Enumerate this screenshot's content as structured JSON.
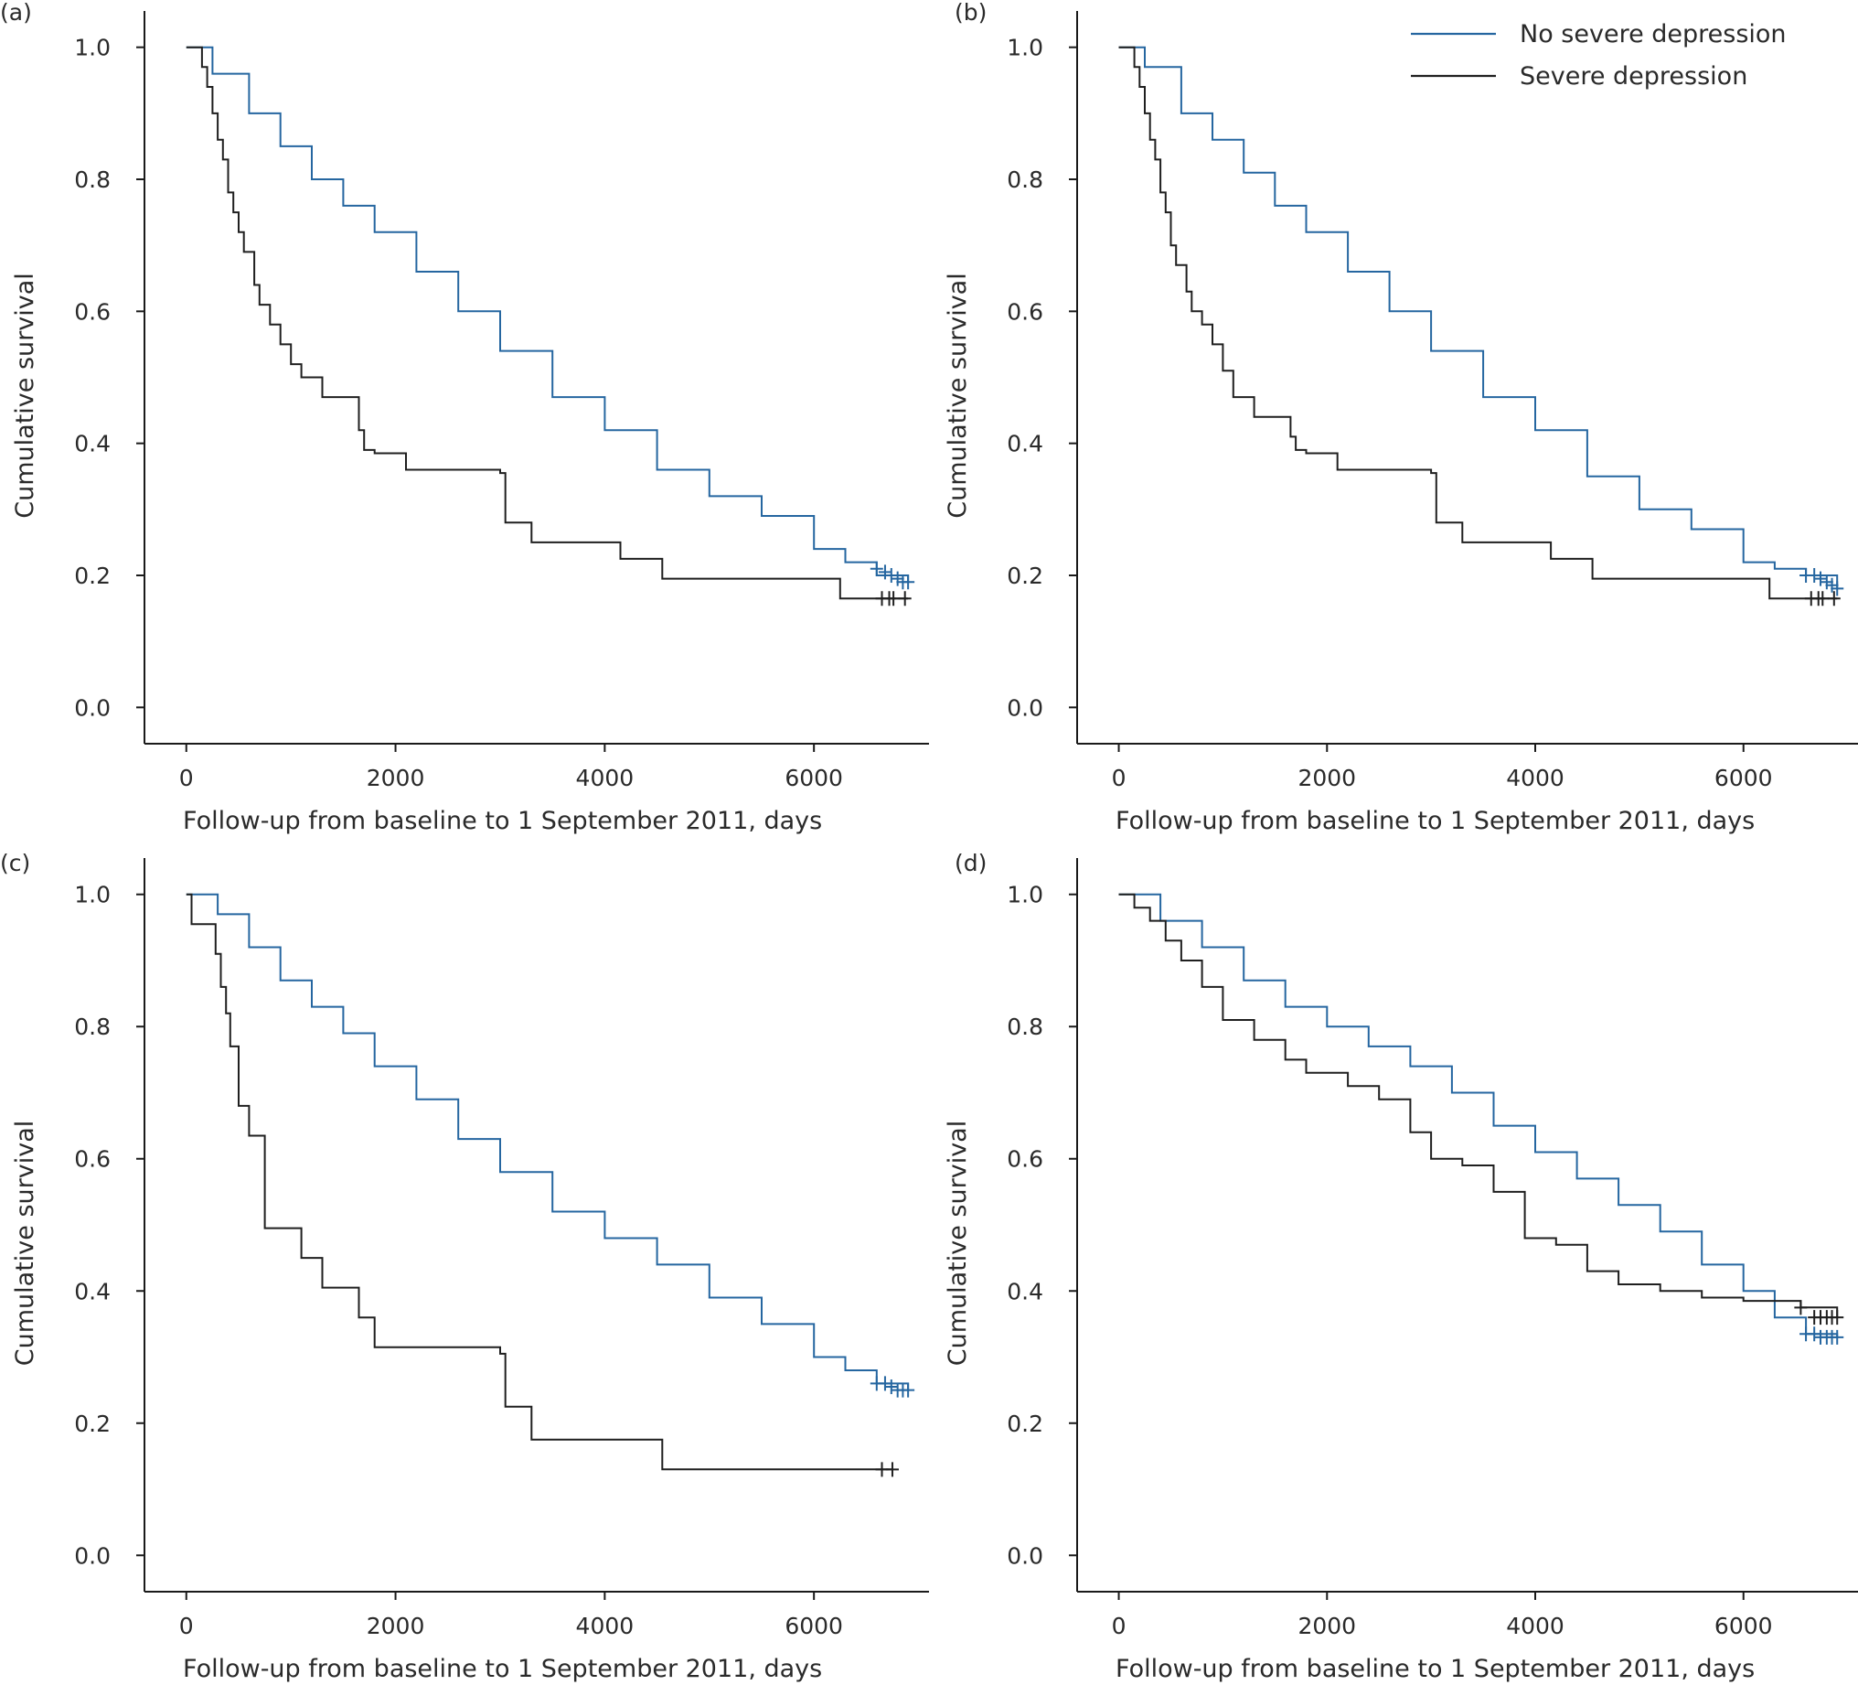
{
  "colors": {
    "no_severe": "#2566a0",
    "severe": "#1f1f1f",
    "axis": "#1a1a1a"
  },
  "legend": [
    {
      "label": "No severe depression",
      "color": "#2566a0"
    },
    {
      "label": "Severe depression",
      "color": "#1f1f1f"
    }
  ],
  "chart_data": [
    {
      "type": "line",
      "panel": "(a)",
      "xlabel": "Follow-up from baseline to 1 September 2011, days",
      "ylabel": "Cumulative survival",
      "xlim": [
        -400,
        7100
      ],
      "ylim": [
        -0.055,
        1.055
      ],
      "xticks": [
        0,
        2000,
        4000,
        6000
      ],
      "yticks": [
        0.0,
        0.2,
        0.4,
        0.6,
        0.8,
        1.0
      ],
      "xtick_labels": [
        "0",
        "2000",
        "4000",
        "6000"
      ],
      "ytick_labels": [
        "0.0",
        "0.2",
        "0.4",
        "0.6",
        "0.8",
        "1.0"
      ],
      "series": [
        {
          "name": "No severe depression",
          "x": [
            0,
            250,
            600,
            900,
            1200,
            1500,
            1800,
            2200,
            2600,
            3000,
            3500,
            4000,
            4500,
            5000,
            5500,
            6000,
            6300,
            6600,
            6900
          ],
          "y": [
            1.0,
            0.96,
            0.9,
            0.85,
            0.8,
            0.76,
            0.72,
            0.66,
            0.6,
            0.54,
            0.47,
            0.42,
            0.36,
            0.32,
            0.29,
            0.24,
            0.22,
            0.2,
            0.19
          ],
          "censored_x": [
            6600,
            6680,
            6740,
            6800,
            6850,
            6900
          ],
          "censored_y": [
            0.21,
            0.205,
            0.2,
            0.195,
            0.19,
            0.19
          ]
        },
        {
          "name": "Severe depression",
          "x": [
            0,
            150,
            200,
            250,
            300,
            350,
            400,
            450,
            500,
            550,
            650,
            700,
            800,
            900,
            1000,
            1100,
            1300,
            1650,
            1700,
            1800,
            2100,
            3000,
            3050,
            3300,
            4150,
            4550,
            6250,
            6900
          ],
          "y": [
            1.0,
            0.97,
            0.94,
            0.9,
            0.86,
            0.83,
            0.78,
            0.75,
            0.72,
            0.69,
            0.64,
            0.61,
            0.58,
            0.55,
            0.52,
            0.5,
            0.47,
            0.42,
            0.39,
            0.385,
            0.36,
            0.355,
            0.28,
            0.25,
            0.225,
            0.195,
            0.165,
            0.165
          ],
          "censored_x": [
            6650,
            6720,
            6760,
            6870
          ],
          "censored_y": [
            0.165,
            0.165,
            0.165,
            0.165
          ]
        }
      ]
    },
    {
      "type": "line",
      "panel": "(b)",
      "xlabel": "Follow-up from baseline to 1 September 2011, days",
      "ylabel": "Cumulative survival",
      "xlim": [
        -400,
        7100
      ],
      "ylim": [
        -0.055,
        1.055
      ],
      "xticks": [
        0,
        2000,
        4000,
        6000
      ],
      "yticks": [
        0.0,
        0.2,
        0.4,
        0.6,
        0.8,
        1.0
      ],
      "xtick_labels": [
        "0",
        "2000",
        "4000",
        "6000"
      ],
      "ytick_labels": [
        "0.0",
        "0.2",
        "0.4",
        "0.6",
        "0.8",
        "1.0"
      ],
      "series": [
        {
          "name": "No severe depression",
          "x": [
            0,
            250,
            600,
            900,
            1200,
            1500,
            1800,
            2200,
            2600,
            3000,
            3500,
            4000,
            4500,
            5000,
            5500,
            6000,
            6300,
            6600,
            6900
          ],
          "y": [
            1.0,
            0.97,
            0.9,
            0.86,
            0.81,
            0.76,
            0.72,
            0.66,
            0.6,
            0.54,
            0.47,
            0.42,
            0.35,
            0.3,
            0.27,
            0.22,
            0.21,
            0.2,
            0.18
          ],
          "censored_x": [
            6600,
            6680,
            6740,
            6800,
            6850,
            6900
          ],
          "censored_y": [
            0.2,
            0.2,
            0.195,
            0.19,
            0.185,
            0.18
          ]
        },
        {
          "name": "Severe depression",
          "x": [
            0,
            150,
            200,
            250,
            300,
            350,
            400,
            450,
            500,
            550,
            650,
            700,
            800,
            900,
            1000,
            1100,
            1300,
            1650,
            1700,
            1800,
            2100,
            3000,
            3050,
            3300,
            4150,
            4550,
            6250,
            6900
          ],
          "y": [
            1.0,
            0.97,
            0.94,
            0.9,
            0.86,
            0.83,
            0.78,
            0.75,
            0.7,
            0.67,
            0.63,
            0.6,
            0.58,
            0.55,
            0.51,
            0.47,
            0.44,
            0.41,
            0.39,
            0.385,
            0.36,
            0.355,
            0.28,
            0.25,
            0.225,
            0.195,
            0.165,
            0.165
          ],
          "censored_x": [
            6650,
            6720,
            6760,
            6870
          ],
          "censored_y": [
            0.165,
            0.165,
            0.165,
            0.165
          ]
        }
      ]
    },
    {
      "type": "line",
      "panel": "(c)",
      "xlabel": "Follow-up from baseline to 1 September 2011, days",
      "ylabel": "Cumulative survival",
      "xlim": [
        -400,
        7100
      ],
      "ylim": [
        -0.055,
        1.055
      ],
      "xticks": [
        0,
        2000,
        4000,
        6000
      ],
      "yticks": [
        0.0,
        0.2,
        0.4,
        0.6,
        0.8,
        1.0
      ],
      "xtick_labels": [
        "0",
        "2000",
        "4000",
        "6000"
      ],
      "ytick_labels": [
        "0.0",
        "0.2",
        "0.4",
        "0.6",
        "0.8",
        "1.0"
      ],
      "series": [
        {
          "name": "No severe depression",
          "x": [
            0,
            300,
            600,
            900,
            1200,
            1500,
            1800,
            2200,
            2600,
            3000,
            3500,
            4000,
            4500,
            5000,
            5500,
            6000,
            6300,
            6600,
            6900
          ],
          "y": [
            1.0,
            0.97,
            0.92,
            0.87,
            0.83,
            0.79,
            0.74,
            0.69,
            0.63,
            0.58,
            0.52,
            0.48,
            0.44,
            0.39,
            0.35,
            0.3,
            0.28,
            0.26,
            0.25
          ],
          "censored_x": [
            6600,
            6680,
            6740,
            6800,
            6850,
            6900
          ],
          "censored_y": [
            0.26,
            0.26,
            0.255,
            0.25,
            0.25,
            0.25
          ]
        },
        {
          "name": "Severe depression",
          "x": [
            0,
            50,
            280,
            330,
            380,
            420,
            500,
            600,
            750,
            1100,
            1300,
            1650,
            1800,
            3000,
            3050,
            3300,
            4550,
            6650,
            6750
          ],
          "y": [
            1.0,
            0.955,
            0.91,
            0.86,
            0.82,
            0.77,
            0.68,
            0.635,
            0.495,
            0.45,
            0.405,
            0.36,
            0.315,
            0.305,
            0.225,
            0.175,
            0.13,
            0.13,
            0.13
          ],
          "censored_x": [
            6650,
            6750
          ],
          "censored_y": [
            0.13,
            0.13
          ]
        }
      ]
    },
    {
      "type": "line",
      "panel": "(d)",
      "xlabel": "Follow-up from baseline to 1 September 2011, days",
      "ylabel": "Cumulative survival",
      "xlim": [
        -400,
        7100
      ],
      "ylim": [
        -0.055,
        1.055
      ],
      "xticks": [
        0,
        2000,
        4000,
        6000
      ],
      "yticks": [
        0.0,
        0.2,
        0.4,
        0.6,
        0.8,
        1.0
      ],
      "xtick_labels": [
        "0",
        "2000",
        "4000",
        "6000"
      ],
      "ytick_labels": [
        "0.0",
        "0.2",
        "0.4",
        "0.6",
        "0.8",
        "1.0"
      ],
      "series": [
        {
          "name": "No severe depression",
          "x": [
            0,
            400,
            800,
            1200,
            1600,
            2000,
            2400,
            2800,
            3200,
            3600,
            4000,
            4400,
            4800,
            5200,
            5600,
            6000,
            6300,
            6600,
            6900
          ],
          "y": [
            1.0,
            0.96,
            0.92,
            0.87,
            0.83,
            0.8,
            0.77,
            0.74,
            0.7,
            0.65,
            0.61,
            0.57,
            0.53,
            0.49,
            0.44,
            0.4,
            0.36,
            0.335,
            0.33
          ],
          "censored_x": [
            6600,
            6680,
            6740,
            6800,
            6850,
            6900
          ],
          "censored_y": [
            0.335,
            0.335,
            0.33,
            0.33,
            0.33,
            0.33
          ]
        },
        {
          "name": "Severe depression",
          "x": [
            0,
            150,
            300,
            450,
            600,
            800,
            1000,
            1300,
            1600,
            1800,
            2200,
            2500,
            2800,
            3000,
            3300,
            3600,
            3900,
            4200,
            4500,
            4800,
            5200,
            5600,
            6000,
            6550,
            6900
          ],
          "y": [
            1.0,
            0.98,
            0.96,
            0.93,
            0.9,
            0.86,
            0.81,
            0.78,
            0.75,
            0.73,
            0.71,
            0.69,
            0.64,
            0.6,
            0.59,
            0.55,
            0.48,
            0.47,
            0.43,
            0.41,
            0.4,
            0.39,
            0.385,
            0.375,
            0.36
          ],
          "censored_x": [
            6550,
            6680,
            6740,
            6800,
            6850,
            6900
          ],
          "censored_y": [
            0.375,
            0.36,
            0.36,
            0.36,
            0.36,
            0.36
          ]
        }
      ]
    }
  ]
}
